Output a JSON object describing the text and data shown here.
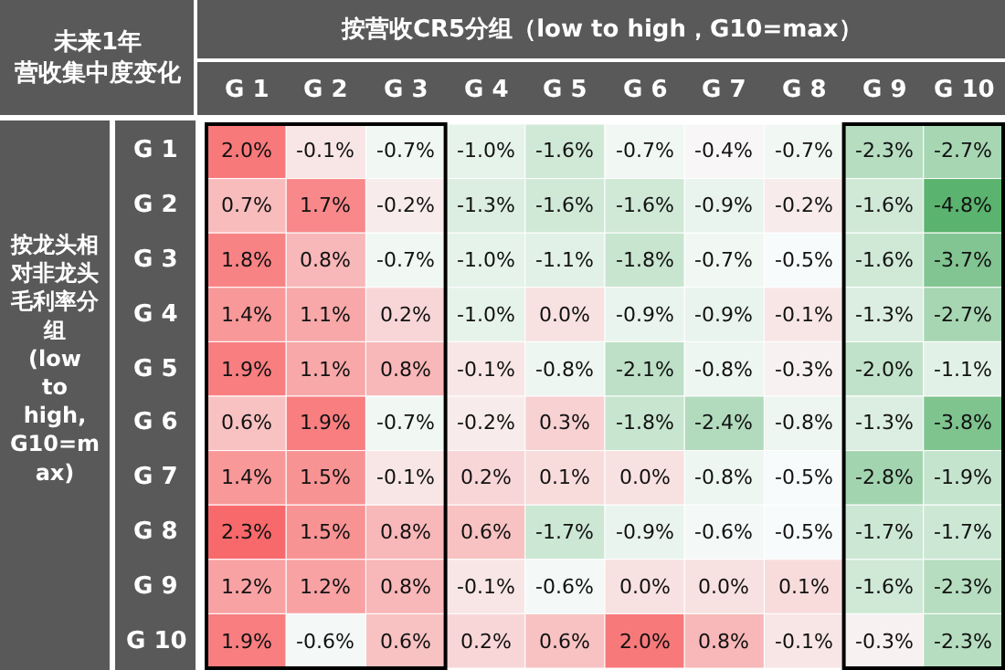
{
  "chart_data": {
    "type": "heatmap",
    "title": "未来1年营收集中度变化",
    "xlabel": "按营收CR5分组（low to high，G10=max）",
    "ylabel": "按龙头相对非龙头毛利率分组 (low to high, G10=max)",
    "categories": [
      "G 1",
      "G 2",
      "G 3",
      "G 4",
      "G 5",
      "G 6",
      "G 7",
      "G 8",
      "G 9",
      "G 10"
    ],
    "y_categories": [
      "G 1",
      "G 2",
      "G 3",
      "G 4",
      "G 5",
      "G 6",
      "G 7",
      "G 8",
      "G 9",
      "G 10"
    ],
    "cells": [
      [
        2.0,
        -0.1,
        -0.7,
        -1.0,
        -1.6,
        -0.7,
        -0.4,
        -0.7,
        -2.3,
        -2.7
      ],
      [
        0.7,
        1.7,
        -0.2,
        -1.3,
        -1.6,
        -1.6,
        -0.9,
        -0.2,
        -1.6,
        -4.8
      ],
      [
        1.8,
        0.8,
        -0.7,
        -1.0,
        -1.1,
        -1.8,
        -0.7,
        -0.5,
        -1.6,
        -3.7
      ],
      [
        1.4,
        1.1,
        0.2,
        -1.0,
        0.0,
        -0.9,
        -0.9,
        -0.1,
        -1.3,
        -2.7
      ],
      [
        1.9,
        1.1,
        0.8,
        -0.1,
        -0.8,
        -2.1,
        -0.8,
        -0.3,
        -2.0,
        -1.1
      ],
      [
        0.6,
        1.9,
        -0.7,
        -0.2,
        0.3,
        -1.8,
        -2.4,
        -0.8,
        -1.3,
        -3.8
      ],
      [
        1.4,
        1.5,
        -0.1,
        0.2,
        0.1,
        0.0,
        -0.8,
        -0.5,
        -2.8,
        -1.9
      ],
      [
        2.3,
        1.5,
        0.8,
        0.6,
        -1.7,
        -0.9,
        -0.6,
        -0.5,
        -1.7,
        -1.7
      ],
      [
        1.2,
        1.2,
        0.8,
        -0.1,
        -0.6,
        0.0,
        0.0,
        0.1,
        -1.6,
        -2.3
      ],
      [
        1.9,
        -0.6,
        0.6,
        0.2,
        0.6,
        2.0,
        0.8,
        -0.1,
        -0.3,
        -2.3
      ]
    ],
    "cell_labels": [
      [
        "2.0%",
        "-0.1%",
        "-0.7%",
        "-1.0%",
        "-1.6%",
        "-0.7%",
        "-0.4%",
        "-0.7%",
        "-2.3%",
        "-2.7%"
      ],
      [
        "0.7%",
        "1.7%",
        "-0.2%",
        "-1.3%",
        "-1.6%",
        "-1.6%",
        "-0.9%",
        "-0.2%",
        "-1.6%",
        "-4.8%"
      ],
      [
        "1.8%",
        "0.8%",
        "-0.7%",
        "-1.0%",
        "-1.1%",
        "-1.8%",
        "-0.7%",
        "-0.5%",
        "-1.6%",
        "-3.7%"
      ],
      [
        "1.4%",
        "1.1%",
        "0.2%",
        "-1.0%",
        "0.0%",
        "-0.9%",
        "-0.9%",
        "-0.1%",
        "-1.3%",
        "-2.7%"
      ],
      [
        "1.9%",
        "1.1%",
        "0.8%",
        "-0.1%",
        "-0.8%",
        "-2.1%",
        "-0.8%",
        "-0.3%",
        "-2.0%",
        "-1.1%"
      ],
      [
        "0.6%",
        "1.9%",
        "-0.7%",
        "-0.2%",
        "0.3%",
        "-1.8%",
        "-2.4%",
        "-0.8%",
        "-1.3%",
        "-3.8%"
      ],
      [
        "1.4%",
        "1.5%",
        "-0.1%",
        "0.2%",
        "0.1%",
        "0.0%",
        "-0.8%",
        "-0.5%",
        "-2.8%",
        "-1.9%"
      ],
      [
        "2.3%",
        "1.5%",
        "0.8%",
        "0.6%",
        "-1.7%",
        "-0.9%",
        "-0.6%",
        "-0.5%",
        "-1.7%",
        "-1.7%"
      ],
      [
        "1.2%",
        "1.2%",
        "0.8%",
        "-0.1%",
        "-0.6%",
        "0.0%",
        "0.0%",
        "0.1%",
        "-1.6%",
        "-2.3%"
      ],
      [
        "1.9%",
        "-0.6%",
        "0.6%",
        "0.2%",
        "0.6%",
        "2.0%",
        "0.8%",
        "-0.1%",
        "-0.3%",
        "-2.3%"
      ]
    ]
  }
}
